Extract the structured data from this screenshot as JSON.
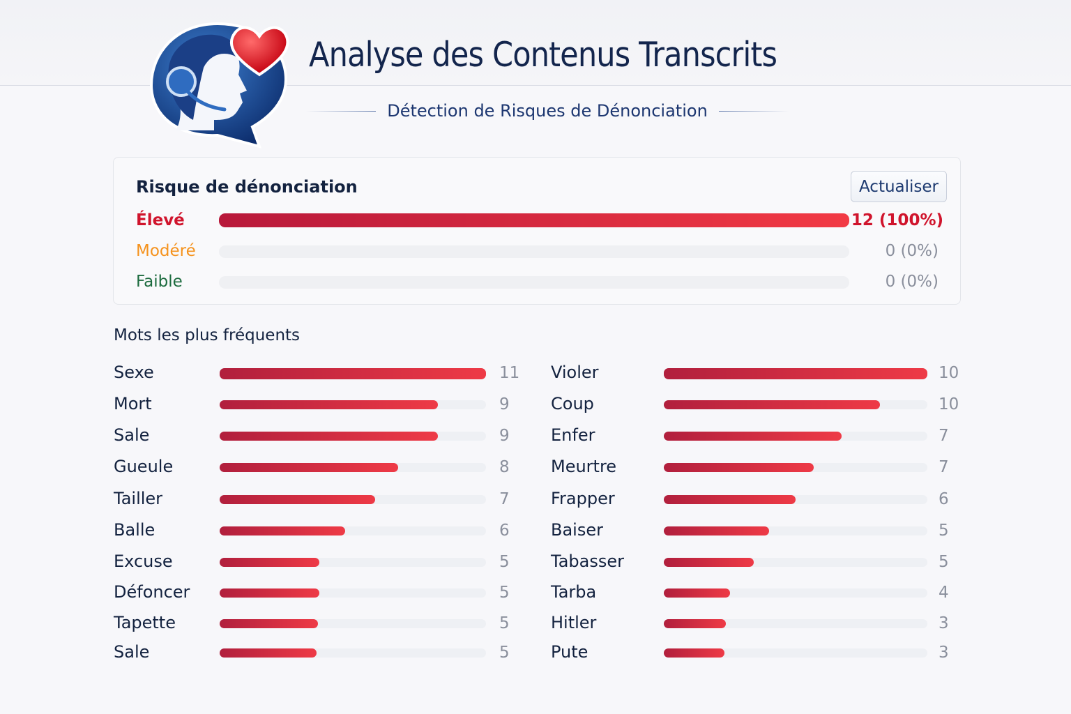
{
  "header": {
    "title": "Analyse des Contenus Transcrits",
    "subtitle": "Détection de Risques de Dénonciation",
    "logo": "operator-headset-heart-logo"
  },
  "risk": {
    "title": "Risque de dénonciation",
    "refresh_label": "Actualiser",
    "levels": [
      {
        "label": "Élevé",
        "value": "12 (100%)",
        "percent": 100,
        "color": "#d0142c"
      },
      {
        "label": "Modéré",
        "value": "0 (0%)",
        "percent": 0,
        "color": "#f5931e"
      },
      {
        "label": "Faible",
        "value": "0 (0%)",
        "percent": 0,
        "color": "#1c6b3e"
      }
    ]
  },
  "words": {
    "title": "Mots les plus fréquents",
    "left": [
      {
        "word": "Sexe",
        "count": "11",
        "fill": 1.0
      },
      {
        "word": "Mort",
        "count": "9",
        "fill": 0.82
      },
      {
        "word": "Sale",
        "count": "9",
        "fill": 0.82
      },
      {
        "word": "Gueule",
        "count": "8",
        "fill": 0.67
      },
      {
        "word": "Tailler",
        "count": "7",
        "fill": 0.585
      },
      {
        "word": "Balle",
        "count": "6",
        "fill": 0.47
      },
      {
        "word": "Excuse",
        "count": "5",
        "fill": 0.375
      },
      {
        "word": "Défoncer",
        "count": "5",
        "fill": 0.375
      },
      {
        "word": "Tapette",
        "count": "5",
        "fill": 0.37
      },
      {
        "word": "Sale",
        "count": "5",
        "fill": 0.365
      }
    ],
    "right": [
      {
        "word": "Violer",
        "count": "10",
        "fill": 1.0
      },
      {
        "word": "Coup",
        "count": "10",
        "fill": 0.82
      },
      {
        "word": "Enfer",
        "count": "7",
        "fill": 0.675
      },
      {
        "word": "Meurtre",
        "count": "7",
        "fill": 0.57
      },
      {
        "word": "Frapper",
        "count": "6",
        "fill": 0.5
      },
      {
        "word": "Baiser",
        "count": "5",
        "fill": 0.4
      },
      {
        "word": "Tabasser",
        "count": "5",
        "fill": 0.34
      },
      {
        "word": "Tarba",
        "count": "4",
        "fill": 0.25
      },
      {
        "word": "Hitler",
        "count": "3",
        "fill": 0.235
      },
      {
        "word": "Pute",
        "count": "3",
        "fill": 0.23
      }
    ]
  }
}
